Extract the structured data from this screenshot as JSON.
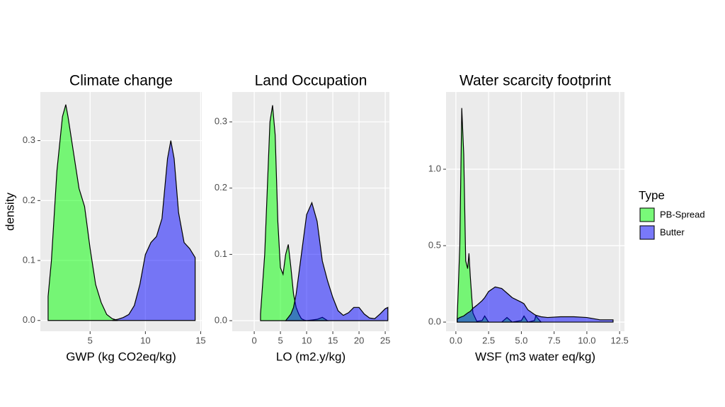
{
  "chart_data": [
    {
      "type": "area",
      "title": "Climate change",
      "x_label": "GWP (kg CO2eq/kg)",
      "y_label": "density",
      "x": [
        1.2,
        1.5,
        2,
        2.5,
        2.8,
        3,
        3.5,
        4,
        4.5,
        5,
        5.5,
        6,
        6.5,
        7,
        7.5,
        8,
        8.5,
        9,
        9.5,
        10,
        10.5,
        11,
        11.5,
        12,
        12.3,
        12.6,
        13,
        13.5,
        14,
        14.5
      ],
      "series": [
        {
          "color": "#00ff00",
          "values": [
            0.04,
            0.1,
            0.25,
            0.34,
            0.36,
            0.34,
            0.28,
            0.22,
            0.19,
            0.12,
            0.06,
            0.03,
            0.01,
            0.003,
            0.0,
            null,
            null,
            null,
            null,
            null,
            null,
            null,
            null,
            null,
            null,
            null,
            null,
            null,
            null,
            null
          ]
        },
        {
          "color": "#0000ff",
          "values": [
            null,
            null,
            null,
            null,
            null,
            null,
            null,
            null,
            null,
            null,
            null,
            null,
            null,
            0.0,
            0.002,
            0.005,
            0.01,
            0.025,
            0.06,
            0.11,
            0.13,
            0.14,
            0.17,
            0.27,
            0.3,
            0.27,
            0.18,
            0.13,
            0.12,
            0.105
          ]
        }
      ],
      "xlim": [
        0.5,
        15.1
      ],
      "ylim": [
        -0.018,
        0.381
      ],
      "xticks": [
        5,
        10,
        15
      ],
      "yticks": [
        {
          "value": 0,
          "label": "0.0"
        },
        0.1,
        0.2,
        0.3
      ],
      "grid": true
    },
    {
      "type": "area",
      "title": "Land Occupation",
      "x_label": "LO (m2.y/kg)",
      "x": [
        1.2,
        2,
        2.5,
        3,
        3.5,
        4,
        4.5,
        5,
        5.5,
        6,
        6.5,
        7,
        7.5,
        8,
        8.5,
        9,
        9.5,
        10,
        11,
        12,
        13,
        14,
        15,
        16,
        17,
        18,
        19,
        20,
        21,
        22,
        23,
        24,
        25,
        25.5
      ],
      "series": [
        {
          "color": "#00ff00",
          "values": [
            0.01,
            0.1,
            0.2,
            0.3,
            0.325,
            0.28,
            0.15,
            0.08,
            0.07,
            0.1,
            0.115,
            0.08,
            0.04,
            0.02,
            0.01,
            0.003,
            0.001,
            0.0,
            0.001,
            0.002,
            0.005,
            0.0,
            null,
            null,
            null,
            null,
            null,
            null,
            null,
            null,
            null,
            null,
            null,
            null
          ]
        },
        {
          "color": "#0000ff",
          "values": [
            null,
            null,
            null,
            null,
            null,
            null,
            null,
            null,
            null,
            0.0,
            0.005,
            0.01,
            0.02,
            0.04,
            0.07,
            0.1,
            0.13,
            0.16,
            0.178,
            0.15,
            0.09,
            0.06,
            0.035,
            0.015,
            0.008,
            0.012,
            0.02,
            0.02,
            0.01,
            0.004,
            0.003,
            0.01,
            0.018,
            0.02
          ]
        }
      ],
      "xlim": [
        -4.2,
        25.8
      ],
      "ylim": [
        -0.016,
        0.345
      ],
      "xticks": [
        0,
        5,
        10,
        15,
        20,
        25
      ],
      "yticks": [
        {
          "value": 0,
          "label": "0.0"
        },
        0.1,
        0.2,
        0.3
      ],
      "grid": true
    },
    {
      "type": "area",
      "title": "Water scarcity footprint",
      "x_label": "WSF (m3 water eq/kg)",
      "legend_title": "Type",
      "x": [
        0.1,
        0.3,
        0.45,
        0.6,
        0.75,
        0.9,
        1.0,
        1.1,
        1.3,
        1.6,
        2,
        2.2,
        2.5,
        3,
        3.5,
        3.9,
        4.3,
        5,
        5.2,
        5.5,
        6,
        6.1,
        6.5,
        7,
        8,
        9,
        10,
        11,
        12
      ],
      "series": [
        {
          "name": "PB-Spread",
          "color": "#00ff00",
          "values": [
            0.02,
            0.5,
            1.4,
            1.1,
            0.4,
            0.35,
            0.45,
            0.3,
            0.06,
            0.005,
            0.01,
            0.04,
            0.0,
            0.0,
            0.0,
            0.03,
            0.0,
            0.01,
            0.04,
            0.0,
            0.01,
            0.04,
            0.0,
            null,
            null,
            null,
            null,
            null,
            null
          ]
        },
        {
          "name": "Butter",
          "color": "#0000ff",
          "values": [
            0.02,
            0.03,
            0.035,
            0.04,
            0.05,
            0.06,
            0.065,
            0.07,
            0.09,
            0.11,
            0.14,
            0.16,
            0.2,
            0.23,
            0.22,
            0.19,
            0.16,
            0.13,
            0.12,
            0.08,
            0.05,
            0.045,
            0.035,
            0.03,
            0.035,
            0.035,
            0.03,
            0.015,
            0.015
          ]
        }
      ],
      "xlim": [
        -0.75,
        12.87
      ],
      "ylim": [
        -0.06,
        1.505
      ],
      "xticks": [
        {
          "value": 0,
          "label": "0.0"
        },
        2.5,
        {
          "value": 5,
          "label": "5.0"
        },
        7.5,
        {
          "value": 10,
          "label": "10.0"
        },
        12.5
      ],
      "yticks": [
        {
          "value": 0,
          "label": "0.0"
        },
        0.5,
        {
          "value": 1,
          "label": "1.0"
        }
      ],
      "grid": true
    }
  ]
}
